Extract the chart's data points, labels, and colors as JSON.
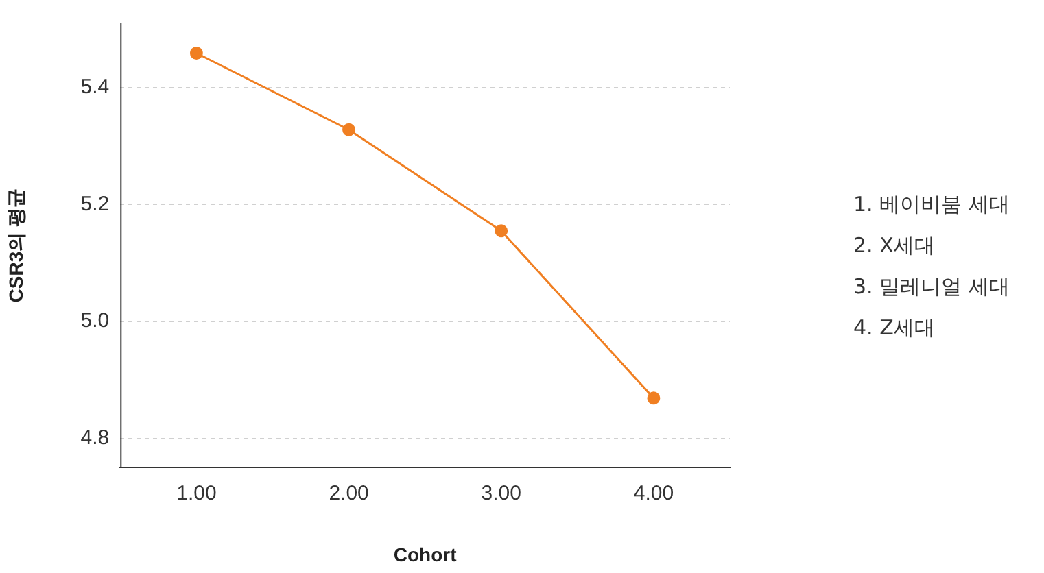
{
  "chart_data": {
    "type": "line",
    "xlabel": "Cohort",
    "ylabel": "CSR3의 평균",
    "x": [
      1,
      2,
      3,
      4
    ],
    "series": [
      {
        "color": "#f07f22",
        "values": [
          5.459,
          5.328,
          5.155,
          4.869
        ]
      }
    ],
    "xlim": [
      0.5,
      4.5
    ],
    "xticks": [
      {
        "value": 1,
        "label": "1.00"
      },
      {
        "value": 2,
        "label": "2.00"
      },
      {
        "value": 3,
        "label": "3.00"
      },
      {
        "value": 4,
        "label": "4.00"
      }
    ],
    "ylim": [
      4.75,
      5.51
    ],
    "yticks": [
      {
        "value": 4.8,
        "label": "4.8"
      },
      {
        "value": 5.0,
        "label": "5.0"
      },
      {
        "value": 5.2,
        "label": "5.2"
      },
      {
        "value": 5.4,
        "label": "5.4"
      }
    ],
    "grid": "y",
    "marker": "circle",
    "line_style": "solid",
    "legend": false,
    "annotations": [
      "1. 베이비붐 세대",
      "2. X세대",
      "3. 밀레니얼 세대",
      "4. Z세대"
    ]
  }
}
